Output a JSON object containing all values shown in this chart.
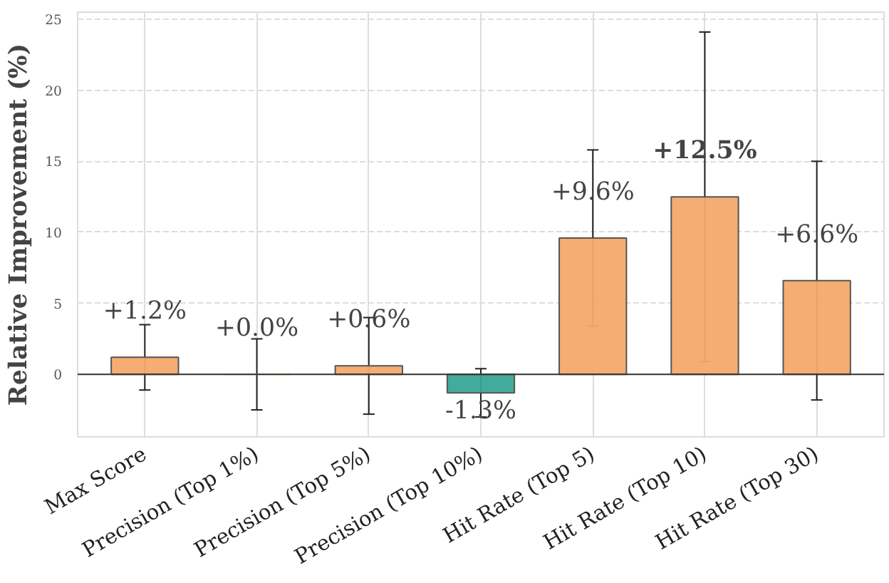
{
  "chart_data": {
    "type": "bar",
    "ylabel": "Relative Improvement (%)",
    "categories": [
      "Max Score",
      "Precision (Top 1%)",
      "Precision (Top 5%)",
      "Precision (Top 10%)",
      "Hit Rate (Top 5)",
      "Hit Rate (Top 10)",
      "Hit Rate (Top 30)"
    ],
    "values": [
      1.2,
      0.0,
      0.6,
      -1.3,
      9.6,
      12.5,
      6.6
    ],
    "errors": [
      2.3,
      2.5,
      3.4,
      1.7,
      6.2,
      11.6,
      8.4
    ],
    "colors": [
      "#f4a96b",
      "#f4a96b",
      "#f4a96b",
      "#3aa596",
      "#f4a96b",
      "#f4a96b",
      "#f4a96b"
    ],
    "value_labels": [
      "+1.2%",
      "+0.0%",
      "+0.6%",
      "-1.3%",
      "+9.6%",
      "+12.5%",
      "+6.6%"
    ],
    "ylim": [
      -4.4,
      25.5
    ],
    "yticks": [
      0,
      5,
      10,
      15,
      20,
      25
    ],
    "ref_lines": [
      {
        "axis": "y",
        "value": 0,
        "label": null,
        "color": "#333333"
      }
    ],
    "grid": true
  }
}
